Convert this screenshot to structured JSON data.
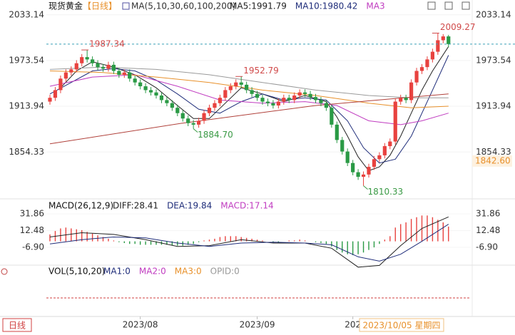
{
  "chart_data": [
    {
      "type": "candlestick",
      "title": "现货黄金",
      "period": "【日线】",
      "ma_title": "MA(5,10,30,60,100,200)",
      "legend": [
        {
          "text": "MA5:1991.79",
          "color": "#222222"
        },
        {
          "text": "MA10:1980.42",
          "color": "#1f2d7a"
        },
        {
          "text": "MA3",
          "color": "#c03cc0"
        }
      ],
      "period_tab": "日线",
      "cursor_date": "2023/10/05 星期四",
      "cursor_price": {
        "value": 1842.6,
        "label": "1842.60"
      },
      "categories": [
        null,
        null,
        null,
        null,
        null,
        null,
        null,
        null,
        null,
        null,
        null,
        null,
        null,
        null,
        null,
        null,
        null,
        "2023/08",
        null,
        null,
        null,
        null,
        null,
        null,
        null,
        null,
        null,
        null,
        null,
        null,
        null,
        null,
        null,
        null,
        null,
        null,
        null,
        null,
        null,
        "2023/09",
        null,
        null,
        null,
        null,
        null,
        null,
        null,
        null,
        null,
        null,
        null,
        null,
        null,
        null,
        null,
        null,
        null,
        "202",
        null,
        null,
        null,
        null,
        null,
        null,
        null,
        null,
        null,
        null,
        null,
        null,
        null,
        null,
        null,
        null,
        null,
        null
      ],
      "open": [
        1920,
        1925,
        1935,
        1950,
        1958,
        1962,
        1970,
        1978,
        1975,
        1970,
        1965,
        1963,
        1968,
        1960,
        1955,
        1958,
        1950,
        1945,
        1940,
        1935,
        1932,
        1928,
        1922,
        1918,
        1912,
        1905,
        1898,
        1892,
        1890,
        1895,
        1905,
        1912,
        1918,
        1925,
        1935,
        1940,
        1945,
        1942,
        1935,
        1930,
        1925,
        1920,
        1918,
        1915,
        1920,
        1925,
        1922,
        1928,
        1932,
        1930,
        1926,
        1922,
        1918,
        1912,
        1890,
        1870,
        1855,
        1840,
        1828,
        1822,
        1825,
        1835,
        1845,
        1850,
        1862,
        1868,
        1920,
        1925,
        1922,
        1945,
        1960,
        1965,
        1975,
        1985,
        2000,
        2005
      ],
      "high": [
        1929,
        1939,
        1954,
        1962,
        1966,
        1974,
        1982,
        1987.34,
        1979,
        1974,
        1969,
        1972,
        1972,
        1964,
        1962,
        1962,
        1954,
        1949,
        1944,
        1939,
        1936,
        1932,
        1926,
        1922,
        1916,
        1909,
        1902,
        1896,
        1899,
        1909,
        1916,
        1922,
        1929,
        1939,
        1944,
        1949,
        1952.79,
        1946,
        1939,
        1934,
        1929,
        1924,
        1922,
        1924,
        1929,
        1929,
        1932,
        1936,
        1936,
        1934,
        1930,
        1926,
        1922,
        1916,
        1894,
        1874,
        1859,
        1844,
        1832,
        1829,
        1839,
        1849,
        1854,
        1866,
        1872,
        1924,
        1929,
        1929,
        1949,
        1964,
        1969,
        1979,
        1989,
        2009.27,
        2008,
        2007
      ],
      "low": [
        1916,
        1921,
        1931,
        1946,
        1954,
        1958,
        1966,
        1971,
        1966,
        1961,
        1959,
        1959,
        1956,
        1951,
        1951,
        1946,
        1941,
        1936,
        1931,
        1928,
        1924,
        1918,
        1914,
        1908,
        1901,
        1894,
        1888,
        1884.7,
        1886,
        1891,
        1901,
        1908,
        1914,
        1921,
        1931,
        1936,
        1938,
        1931,
        1926,
        1921,
        1916,
        1914,
        1911,
        1911,
        1916,
        1918,
        1918,
        1924,
        1926,
        1922,
        1918,
        1914,
        1908,
        1886,
        1866,
        1851,
        1836,
        1824,
        1818,
        1810.33,
        1821,
        1831,
        1841,
        1846,
        1858,
        1864,
        1916,
        1918,
        1918,
        1941,
        1956,
        1961,
        1971,
        1981,
        1996,
        1991
      ],
      "close": [
        1925,
        1935,
        1950,
        1958,
        1962,
        1970,
        1978,
        1975,
        1970,
        1965,
        1963,
        1968,
        1960,
        1955,
        1958,
        1950,
        1945,
        1940,
        1935,
        1932,
        1928,
        1922,
        1918,
        1912,
        1905,
        1898,
        1892,
        1890,
        1895,
        1905,
        1912,
        1918,
        1925,
        1935,
        1940,
        1945,
        1942,
        1935,
        1930,
        1925,
        1920,
        1918,
        1915,
        1920,
        1925,
        1922,
        1928,
        1932,
        1930,
        1926,
        1922,
        1918,
        1912,
        1890,
        1870,
        1855,
        1840,
        1828,
        1822,
        1825,
        1835,
        1845,
        1850,
        1862,
        1868,
        1920,
        1925,
        1922,
        1945,
        1960,
        1965,
        1975,
        1985,
        2000,
        2005,
        1995
      ],
      "up_color": "#e8423f",
      "down_color": "#2a9a45",
      "last_line_color": "#3aa0b8",
      "ylim": [
        1797,
        2045
      ],
      "yticks": [
        1854.33,
        1913.94,
        1973.54,
        2033.14
      ],
      "high_labels": [
        1987.34,
        1952.79,
        2009.27
      ],
      "low_labels": [
        {
          "value": 1884.7,
          "label": "1884.70"
        },
        {
          "value": 1810.33,
          "label": "1810.33"
        }
      ],
      "high_label_color": "#d04a4a",
      "low_label_color": "#3a9a45",
      "ma_lines": [
        {
          "color": "#222222",
          "x": [
            2,
            5,
            8,
            12,
            16,
            20,
            24,
            27,
            30,
            33,
            36,
            40,
            44,
            48,
            52,
            54,
            56,
            58,
            60,
            62,
            64,
            66,
            68,
            70,
            72,
            75
          ],
          "values": [
            1938,
            1960,
            1972,
            1965,
            1955,
            1938,
            1915,
            1898,
            1898,
            1918,
            1938,
            1930,
            1920,
            1928,
            1920,
            1900,
            1875,
            1848,
            1830,
            1835,
            1850,
            1875,
            1905,
            1935,
            1960,
            1991.79
          ]
        },
        {
          "color": "#1f2d7a",
          "x": [
            0,
            4,
            8,
            12,
            16,
            20,
            24,
            28,
            32,
            36,
            40,
            44,
            48,
            52,
            56,
            59,
            62,
            65,
            68,
            71,
            75
          ],
          "values": [
            1930,
            1945,
            1960,
            1963,
            1960,
            1948,
            1930,
            1910,
            1905,
            1920,
            1930,
            1922,
            1925,
            1922,
            1895,
            1860,
            1840,
            1845,
            1875,
            1920,
            1980.42
          ]
        },
        {
          "color": "#c03cc0",
          "x": [
            0,
            8,
            16,
            24,
            32,
            40,
            48,
            54,
            60,
            66,
            70,
            75
          ],
          "values": [
            1940,
            1952,
            1955,
            1940,
            1922,
            1918,
            1920,
            1915,
            1895,
            1890,
            1895,
            1905
          ]
        },
        {
          "color": "#e8902a",
          "x": [
            0,
            10,
            20,
            30,
            40,
            50,
            60,
            68,
            75
          ],
          "values": [
            1960,
            1958,
            1952,
            1945,
            1935,
            1928,
            1918,
            1912,
            1914
          ]
        },
        {
          "color": "#9a9a9a",
          "x": [
            0,
            10,
            20,
            30,
            40,
            50,
            60,
            68,
            75
          ],
          "values": [
            1962,
            1965,
            1962,
            1955,
            1945,
            1935,
            1928,
            1925,
            1925
          ]
        },
        {
          "color": "#b0403a",
          "x": [
            0,
            25,
            50,
            75
          ],
          "values": [
            1865,
            1892,
            1915,
            1930
          ]
        }
      ]
    },
    {
      "type": "macd",
      "title": "MACD(26,12,9)",
      "legend": [
        {
          "text": "DIFF:28.41",
          "color": "#222222"
        },
        {
          "text": "DEA:19.84",
          "color": "#1f2d7a"
        },
        {
          "text": "MACD:17.14",
          "color": "#c03cc0"
        }
      ],
      "values": [
        8,
        12,
        15,
        16,
        15,
        14,
        13,
        11,
        9,
        7,
        5,
        3,
        1,
        -1,
        -2,
        -3,
        -3,
        -4,
        -4,
        -4,
        -4,
        -4,
        -4,
        -5,
        -5,
        -5,
        -4,
        -3,
        -1,
        1,
        2,
        3,
        5,
        6,
        6,
        6,
        5,
        4,
        3,
        2,
        1,
        0,
        -1,
        -1,
        0,
        1,
        1,
        2,
        1,
        0,
        -1,
        -2,
        -3,
        -6,
        -10,
        -13,
        -15,
        -16,
        -15,
        -13,
        -10,
        -7,
        -3,
        2,
        6,
        16,
        20,
        22,
        26,
        28,
        30,
        30,
        28,
        25,
        22,
        17.14
      ],
      "up_color": "#e8423f",
      "down_color": "#2a9a45",
      "lines": [
        {
          "color": "#222222",
          "x": [
            0,
            6,
            12,
            18,
            24,
            30,
            36,
            42,
            48,
            53,
            58,
            62,
            66,
            70,
            75
          ],
          "values": [
            5,
            10,
            8,
            2,
            -6,
            -5,
            2,
            -2,
            -2,
            -8,
            -30,
            -28,
            -5,
            15,
            28.41
          ]
        },
        {
          "color": "#1f2d7a",
          "x": [
            0,
            6,
            12,
            18,
            24,
            30,
            36,
            42,
            48,
            53,
            58,
            62,
            66,
            70,
            75
          ],
          "values": [
            -3,
            2,
            5,
            4,
            -2,
            -6,
            -2,
            -1,
            -2,
            -4,
            -18,
            -23,
            -15,
            0,
            19.84
          ]
        }
      ],
      "ylim": [
        -26,
        46
      ],
      "yticks": [
        31.86,
        12.48,
        {
          "value": -6.9,
          "label": "-6.90"
        }
      ]
    },
    {
      "type": "volume",
      "title": "VOL(5,10,20)",
      "legend": [
        {
          "text": "MA1:0",
          "color": "#1f2d7a"
        },
        {
          "text": "MA2:0",
          "color": "#c03cc0"
        },
        {
          "text": "MA3:0",
          "color": "#e8902a"
        },
        {
          "text": "OPID:0",
          "color": "#999999"
        }
      ]
    }
  ]
}
